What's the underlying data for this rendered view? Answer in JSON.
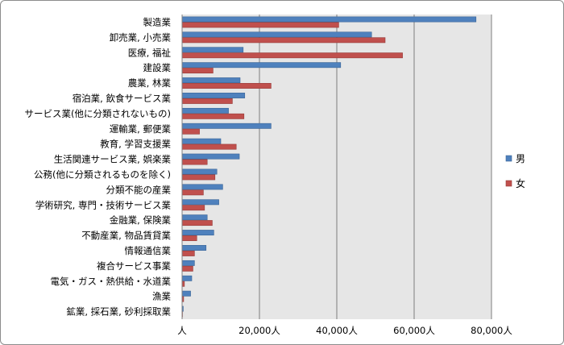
{
  "chart_data": {
    "type": "bar",
    "orientation": "horizontal",
    "categories": [
      "製造業",
      "卸売業, 小売業",
      "医療, 福祉",
      "建設業",
      "農業, 林業",
      "宿泊業, 飲食サービス業",
      "サービス業(他に分類されないもの)",
      "運輸業, 郵便業",
      "教育, 学習支援業",
      "生活関連サービス業, 娯楽業",
      "公務(他に分類されるものを除く)",
      "分類不能の産業",
      "学術研究, 専門・技術サービス業",
      "金融業, 保険業",
      "不動産業, 物品賃貸業",
      "情報通信業",
      "複合サービス事業",
      "電気・ガス・熱供給・水道業",
      "漁業",
      "鉱業, 採石業, 砂利採取業"
    ],
    "series": [
      {
        "name": "男",
        "color": "#4f81bd",
        "values": [
          76000,
          49000,
          15800,
          41000,
          15000,
          16200,
          12000,
          23000,
          10000,
          14800,
          9000,
          10500,
          9500,
          6500,
          8200,
          6200,
          3200,
          2500,
          2200,
          300
        ]
      },
      {
        "name": "女",
        "color": "#c0504d",
        "values": [
          40500,
          52500,
          57000,
          8000,
          23000,
          13000,
          16000,
          4500,
          14000,
          6500,
          8500,
          5500,
          5800,
          7800,
          3800,
          3200,
          2800,
          600,
          400,
          100
        ]
      }
    ],
    "xlim": [
      0,
      80000
    ],
    "xticks": [
      0,
      20000,
      40000,
      60000,
      80000
    ],
    "xtick_labels": [
      "人",
      "20,000人",
      "40,000人",
      "60,000人",
      "80,000人"
    ],
    "grid": true,
    "legend": "right",
    "plot_background": "#e6e6e6"
  }
}
